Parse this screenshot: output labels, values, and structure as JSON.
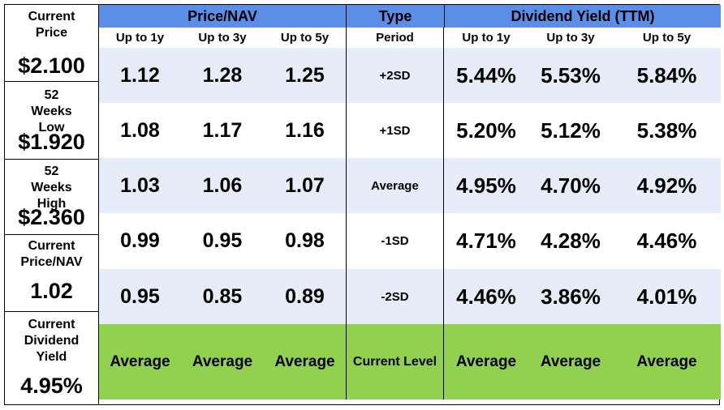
{
  "summary": [
    {
      "label": "Current Price",
      "value": "$2.100"
    },
    {
      "label": "52 Weeks Low",
      "value": "$1.920"
    },
    {
      "label": "52 Weeks High",
      "value": "$2.360"
    },
    {
      "label": "Current Price/NAV",
      "value": "1.02"
    },
    {
      "label": "Current Dividend Yield",
      "value": "4.95%"
    }
  ],
  "header": {
    "price_nav": "Price/NAV",
    "type": "Type",
    "dividend_yield": "Dividend Yield (TTM)"
  },
  "subheader": [
    "Up to 1y",
    "Up to 3y",
    "Up to 5y",
    "Period",
    "Up to 1y",
    "Up to 3y",
    "Up to 5y"
  ],
  "rows": [
    {
      "pn": [
        "1.12",
        "1.28",
        "1.25"
      ],
      "period": "+2SD",
      "dy": [
        "5.44%",
        "5.53%",
        "5.84%"
      ]
    },
    {
      "pn": [
        "1.08",
        "1.17",
        "1.16"
      ],
      "period": "+1SD",
      "dy": [
        "5.20%",
        "5.12%",
        "5.38%"
      ]
    },
    {
      "pn": [
        "1.03",
        "1.06",
        "1.07"
      ],
      "period": "Average",
      "dy": [
        "4.95%",
        "4.70%",
        "4.92%"
      ]
    },
    {
      "pn": [
        "0.99",
        "0.95",
        "0.98"
      ],
      "period": "-1SD",
      "dy": [
        "4.71%",
        "4.28%",
        "4.46%"
      ]
    },
    {
      "pn": [
        "0.95",
        "0.85",
        "0.89"
      ],
      "period": "-2SD",
      "dy": [
        "4.46%",
        "3.86%",
        "4.01%"
      ]
    }
  ],
  "status_row": {
    "pn": [
      "Average",
      "Average",
      "Average"
    ],
    "period": "Current Level",
    "dy": [
      "Average",
      "Average",
      "Average"
    ]
  },
  "colors": {
    "header_blue": "#5b8ee6",
    "row_shade": "#e6edf9",
    "status_green": "#92d050"
  }
}
